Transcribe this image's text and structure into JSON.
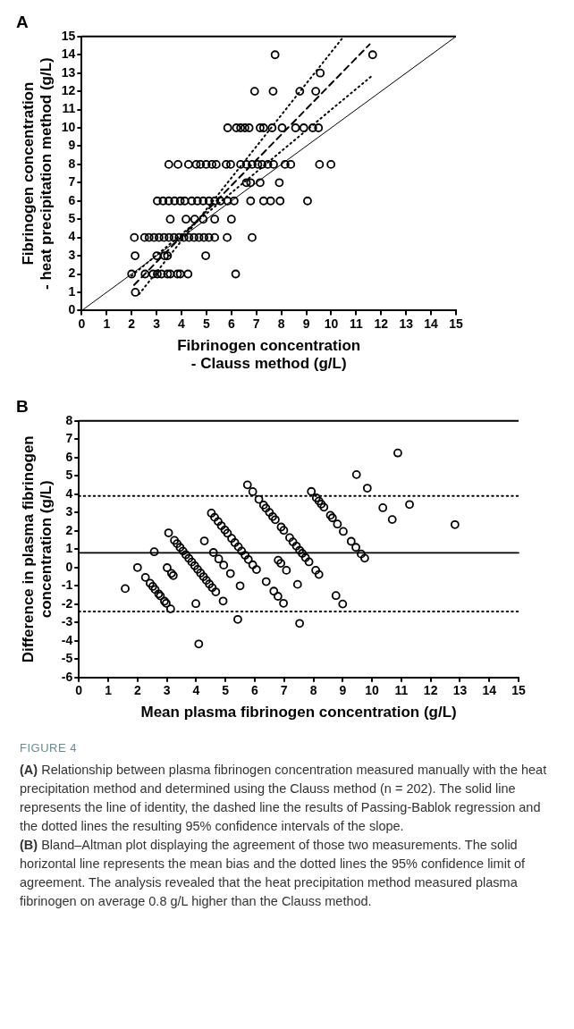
{
  "chart_data": [
    {
      "type": "scatter",
      "title": "A",
      "xlabel": "Fibrinogen concentration\n- Clauss method (g/L)",
      "ylabel": "Fibrinogen concentration\n- heat precipitation method (g/L)",
      "xlim": [
        0,
        15
      ],
      "ylim": [
        0,
        15
      ],
      "xticks": [
        0,
        1,
        2,
        3,
        4,
        5,
        6,
        7,
        8,
        9,
        10,
        11,
        12,
        13,
        14,
        15
      ],
      "yticks": [
        0,
        1,
        2,
        3,
        4,
        5,
        6,
        7,
        8,
        9,
        10,
        11,
        12,
        13,
        14,
        15
      ],
      "grid": false,
      "series": [
        {
          "type": "scatter",
          "color": "#000000",
          "marker": "circle",
          "x": [
            7.75,
            11.66,
            9.56,
            6.93,
            7.67,
            8.74,
            9.38,
            5.85,
            6.2,
            6.37,
            6.54,
            6.71,
            7.15,
            7.29,
            7.63,
            8.03,
            8.57,
            8.9,
            9.26,
            9.49,
            3.49,
            3.86,
            4.28,
            4.59,
            4.76,
            4.99,
            5.22,
            5.39,
            5.79,
            5.97,
            6.37,
            6.6,
            6.83,
            7.06,
            7.23,
            7.46,
            7.69,
            8.15,
            8.38,
            9.53,
            9.99,
            6.6,
            6.77,
            7.15,
            7.92,
            3.03,
            3.26,
            3.49,
            3.72,
            3.95,
            4.13,
            4.41,
            4.64,
            4.87,
            5.1,
            5.33,
            5.56,
            5.85,
            6.11,
            6.77,
            7.29,
            7.57,
            7.95,
            9.05,
            3.55,
            4.18,
            4.53,
            4.87,
            5.33,
            6.0,
            2.11,
            2.52,
            2.7,
            2.9,
            3.1,
            3.3,
            3.5,
            3.7,
            3.9,
            4.1,
            4.3,
            4.5,
            4.7,
            4.9,
            5.1,
            5.33,
            5.83,
            6.83,
            2.14,
            3.01,
            3.32,
            3.44,
            4.97,
            2.0,
            2.54,
            2.86,
            3.03,
            3.2,
            3.44,
            3.55,
            3.84,
            3.95,
            4.26,
            6.17,
            2.15
          ],
          "values": [
            14,
            14,
            13,
            12,
            12,
            12,
            12,
            10,
            10,
            10,
            10,
            10,
            10,
            10,
            10,
            10,
            10,
            10,
            10,
            10,
            8,
            8,
            8,
            8,
            8,
            8,
            8,
            8,
            8,
            8,
            8,
            8,
            8,
            8,
            8,
            8,
            8,
            8,
            8,
            8,
            8,
            7,
            7,
            7,
            7,
            6,
            6,
            6,
            6,
            6,
            6,
            6,
            6,
            6,
            6,
            6,
            6,
            6,
            6,
            6,
            6,
            6,
            6,
            6,
            5,
            5,
            5,
            5,
            5,
            5,
            4,
            4,
            4,
            4,
            4,
            4,
            4,
            4,
            4,
            4,
            4,
            4,
            4,
            4,
            4,
            4,
            4,
            4,
            3,
            3,
            3,
            3,
            3,
            2,
            2,
            2,
            2,
            2,
            2,
            2,
            2,
            2,
            2,
            2,
            1
          ]
        },
        {
          "type": "line",
          "color": "#000000",
          "line_style": "solid",
          "x": [
            0,
            15
          ],
          "values": [
            0,
            15
          ]
        },
        {
          "type": "line",
          "color": "#000000",
          "line_style": "dashed",
          "x": [
            2.1,
            11.54
          ],
          "values": [
            1.4,
            14.57
          ]
        },
        {
          "type": "line",
          "color": "#000000",
          "line_style": "dotted",
          "x": [
            2.3,
            10.5
          ],
          "values": [
            0.9,
            15
          ]
        },
        {
          "type": "line",
          "color": "#000000",
          "line_style": "dotted",
          "x": [
            2.0,
            11.66
          ],
          "values": [
            1.9,
            12.88
          ]
        }
      ]
    },
    {
      "type": "scatter",
      "title": "B",
      "xlabel": "Mean plasma fibrinogen concentration (g/L)",
      "ylabel": "Difference in plasma fibrinogen\nconcentration (g/L)",
      "xlim": [
        0,
        15
      ],
      "ylim": [
        -6,
        8
      ],
      "xticks": [
        0,
        1,
        2,
        3,
        4,
        5,
        6,
        7,
        8,
        9,
        10,
        11,
        12,
        13,
        14,
        15
      ],
      "yticks": [
        -6,
        -5,
        -4,
        -3,
        -2,
        -1,
        0,
        1,
        2,
        3,
        4,
        5,
        6,
        7,
        8
      ],
      "grid": false,
      "ref_lines": [
        {
          "axis": "y",
          "value": 0.8,
          "color": "#000000",
          "line_style": "solid"
        },
        {
          "axis": "y",
          "value": 3.9,
          "color": "#000000",
          "line_style": "dotted"
        },
        {
          "axis": "y",
          "value": -2.4,
          "color": "#000000",
          "line_style": "dotted"
        }
      ],
      "series": [
        {
          "type": "scatter",
          "color": "#000000",
          "marker": "circle",
          "x": [
            10.88,
            12.83,
            11.28,
            9.47,
            9.84,
            10.37,
            10.69,
            7.93,
            8.1,
            8.19,
            8.27,
            8.36,
            8.58,
            8.65,
            8.82,
            9.02,
            9.29,
            9.45,
            9.63,
            9.75,
            5.75,
            5.93,
            6.14,
            6.3,
            6.38,
            6.5,
            6.61,
            6.7,
            6.9,
            6.99,
            7.19,
            7.3,
            7.42,
            7.53,
            7.62,
            7.73,
            7.85,
            8.08,
            8.19,
            8.77,
            9.0,
            6.8,
            6.89,
            7.08,
            7.46,
            4.52,
            4.63,
            4.75,
            4.86,
            4.98,
            5.07,
            5.21,
            5.32,
            5.44,
            5.55,
            5.67,
            5.78,
            5.93,
            6.06,
            6.39,
            6.65,
            6.79,
            6.98,
            7.53,
            4.28,
            4.59,
            4.77,
            4.94,
            5.17,
            5.5,
            3.06,
            3.26,
            3.35,
            3.45,
            3.55,
            3.65,
            3.75,
            3.85,
            3.95,
            4.05,
            4.15,
            4.25,
            4.35,
            4.45,
            4.55,
            4.67,
            4.92,
            5.42,
            2.57,
            3.01,
            3.16,
            3.22,
            3.99,
            2.0,
            2.27,
            2.43,
            2.52,
            2.6,
            2.72,
            2.78,
            2.92,
            2.98,
            3.13,
            4.09,
            1.58
          ],
          "values": [
            6.25,
            2.34,
            3.44,
            5.07,
            4.33,
            3.26,
            2.62,
            4.15,
            3.8,
            3.63,
            3.46,
            3.29,
            2.85,
            2.71,
            2.37,
            1.97,
            1.43,
            1.1,
            0.74,
            0.51,
            4.51,
            4.14,
            3.72,
            3.41,
            3.24,
            3.01,
            2.78,
            2.61,
            2.21,
            2.03,
            1.63,
            1.4,
            1.17,
            0.94,
            0.77,
            0.54,
            0.31,
            -0.15,
            -0.38,
            -1.53,
            -1.99,
            0.4,
            0.23,
            -0.15,
            -0.92,
            2.97,
            2.74,
            2.51,
            2.28,
            2.05,
            1.87,
            1.59,
            1.36,
            1.13,
            0.9,
            0.67,
            0.44,
            0.15,
            -0.11,
            -0.77,
            -1.29,
            -1.57,
            -1.95,
            -3.05,
            1.45,
            0.82,
            0.47,
            0.13,
            -0.33,
            -1.0,
            1.89,
            1.48,
            1.3,
            1.1,
            0.9,
            0.7,
            0.5,
            0.3,
            0.1,
            -0.1,
            -0.3,
            -0.5,
            -0.7,
            -0.9,
            -1.1,
            -1.33,
            -1.83,
            -2.83,
            0.86,
            -0.01,
            -0.32,
            -0.44,
            -1.97,
            0,
            -0.54,
            -0.86,
            -1.03,
            -1.2,
            -1.44,
            -1.55,
            -1.84,
            -1.95,
            -2.26,
            -4.17,
            -1.15
          ]
        }
      ],
      "annotations": [
        "FIGURE 4",
        "(A) Relationship between plasma fibrinogen concentration measured manually with the heat precipitation method and determined using the Clauss method (n = 202). The solid line represents the line of identity, the dashed line the results of Passing-Bablok regression and the dotted lines the resulting 95% confidence intervals of the slope.",
        "(B) Bland–Altman plot displaying the agreement of those two measurements. The solid horizontal line represents the mean bias and the dotted lines the 95% confidence limit of agreement. The analysis revealed that the heat precipitation method measured plasma fibrinogen on average 0.8 g/L higher than the Clauss method."
      ]
    }
  ]
}
